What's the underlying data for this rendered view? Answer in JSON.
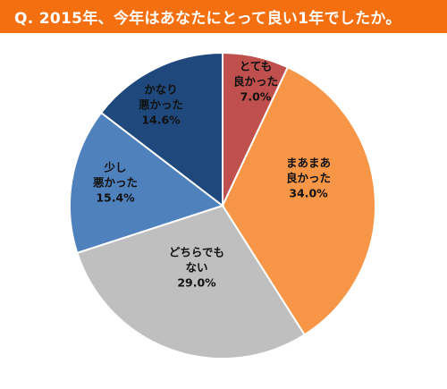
{
  "header": {
    "title": "Q. 2015年、今年はあなたにとって良い1年でしたか。"
  },
  "colors": {
    "header_bg": "#f46f0f",
    "header_text": "#ffffff",
    "slice_border": "#ffffff"
  },
  "chart_data": {
    "type": "pie",
    "title": "Q. 2015年、今年はあなたにとって良い1年でしたか。",
    "start": "12 o'clock, clockwise",
    "slices": [
      {
        "label": [
          "とても",
          "良かった"
        ],
        "value": 7.0,
        "display": "7.0%",
        "color": "#c0504d"
      },
      {
        "label": [
          "まあまあ",
          "良かった"
        ],
        "value": 34.0,
        "display": "34.0%",
        "color": "#f79646"
      },
      {
        "label": [
          "どちらでも",
          "ない"
        ],
        "value": 29.0,
        "display": "29.0%",
        "color": "#bfbfbf"
      },
      {
        "label": [
          "少し",
          "悪かった"
        ],
        "value": 15.4,
        "display": "15.4%",
        "color": "#4f81bd"
      },
      {
        "label": [
          "かなり",
          "悪かった"
        ],
        "value": 14.6,
        "display": "14.6%",
        "color": "#1f497d"
      }
    ]
  }
}
